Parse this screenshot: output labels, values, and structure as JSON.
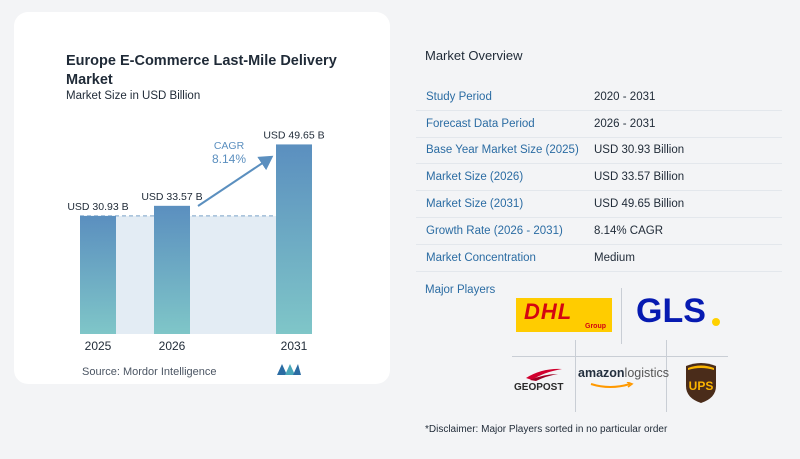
{
  "chart": {
    "title": "Europe E-Commerce Last-Mile Delivery Market",
    "subtitle": "Market Size in USD Billion",
    "source": "Source:  Mordor Intelligence",
    "cagr_label": "CAGR",
    "cagr_value": "8.14%"
  },
  "chart_data": {
    "type": "bar",
    "title": "Europe E-Commerce Last-Mile Delivery Market",
    "subtitle": "Market Size in USD Billion",
    "categories": [
      "2025",
      "2026",
      "2031"
    ],
    "values": [
      30.93,
      33.57,
      49.65
    ],
    "data_labels": [
      "USD 30.93 B",
      "USD 33.57 B",
      "USD 49.65 B"
    ],
    "ylim": [
      0,
      55
    ],
    "grid": false,
    "annotation": "CAGR 8.14%",
    "colors": {
      "bar_top": "#5b8fbf",
      "bar_bottom": "#7fc6c8",
      "arrow": "#5b8fbf",
      "baseline": "#7aa2c8",
      "shade": "#e3ecf4"
    }
  },
  "overview": {
    "title": "Market Overview",
    "rows": [
      {
        "label": "Study Period",
        "value": "2020 - 2031"
      },
      {
        "label": "Forecast Data Period",
        "value": "2026 - 2031"
      },
      {
        "label": "Base Year Market Size (2025)",
        "value": "USD 30.93 Billion"
      },
      {
        "label": "Market Size (2026)",
        "value": "USD 33.57 Billion"
      },
      {
        "label": "Market Size (2031)",
        "value": "USD 49.65 Billion"
      },
      {
        "label": "Growth Rate (2026 - 2031)",
        "value": "8.14% CAGR"
      },
      {
        "label": "Market Concentration",
        "value": "Medium"
      }
    ]
  },
  "players": {
    "title": "Major Players",
    "logos": [
      {
        "name": "DHL",
        "text": "DHL",
        "sub": "Group"
      },
      {
        "name": "GLS",
        "text": "GLS"
      },
      {
        "name": "Geopost",
        "text": "GEOPOST"
      },
      {
        "name": "Amazon Logistics",
        "text_bold": "amazon",
        "text_rest": "logistics"
      },
      {
        "name": "UPS",
        "text": "UPS"
      }
    ],
    "disclaimer": "*Disclaimer: Major Players sorted in no particular order"
  },
  "colors": {
    "accent": "#2b6ca3",
    "dhl_yellow": "#ffcc00",
    "dhl_red": "#d40511",
    "gls_blue": "#061ab1",
    "ups_brown": "#4a2c1a",
    "ups_gold": "#fbb500"
  }
}
